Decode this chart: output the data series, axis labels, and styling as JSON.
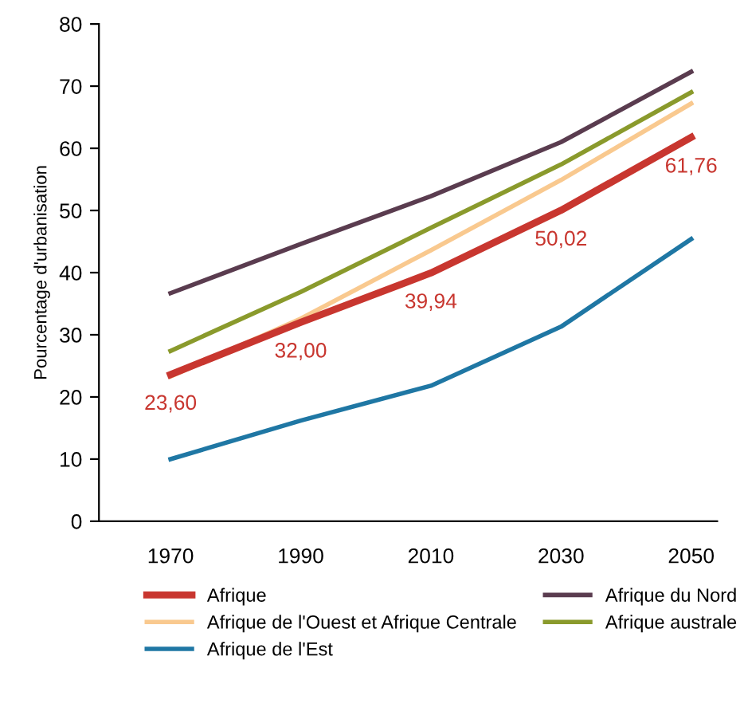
{
  "chart_data": {
    "type": "line",
    "ylabel": "Pourcentage d'urbanisation",
    "x": [
      1970,
      1990,
      2010,
      2030,
      2050
    ],
    "xlim": [
      1959,
      2054
    ],
    "xticks": [
      1970,
      1990,
      2010,
      2030,
      2050
    ],
    "ylim": [
      0,
      80
    ],
    "yticks": [
      0,
      10,
      20,
      30,
      40,
      50,
      60,
      70,
      80
    ],
    "grid": false,
    "legend": "bottom",
    "marker": "none",
    "line_style": "solid",
    "series": [
      {
        "name": "Afrique",
        "color": "#c8362f",
        "values": [
          23.6,
          32.0,
          39.94,
          50.02,
          61.76
        ],
        "value_labels": [
          "23,60",
          "32,00",
          "39,94",
          "50,02",
          "61,76"
        ]
      },
      {
        "name": "Afrique de l'Ouest et Afrique Centrale",
        "color": "#f9c98f",
        "values": [
          23.3,
          32.6,
          43.6,
          54.9,
          67.2
        ]
      },
      {
        "name": "Afrique de l'Est",
        "color": "#1f77a4",
        "values": [
          10.0,
          16.2,
          21.8,
          31.3,
          45.4
        ]
      },
      {
        "name": "Afrique du Nord",
        "color": "#5a3c4f",
        "values": [
          36.7,
          44.6,
          52.3,
          61.0,
          72.3
        ]
      },
      {
        "name": "Afrique australe",
        "color": "#8a9a2c",
        "values": [
          27.4,
          36.9,
          47.2,
          57.4,
          69.0
        ]
      }
    ]
  }
}
